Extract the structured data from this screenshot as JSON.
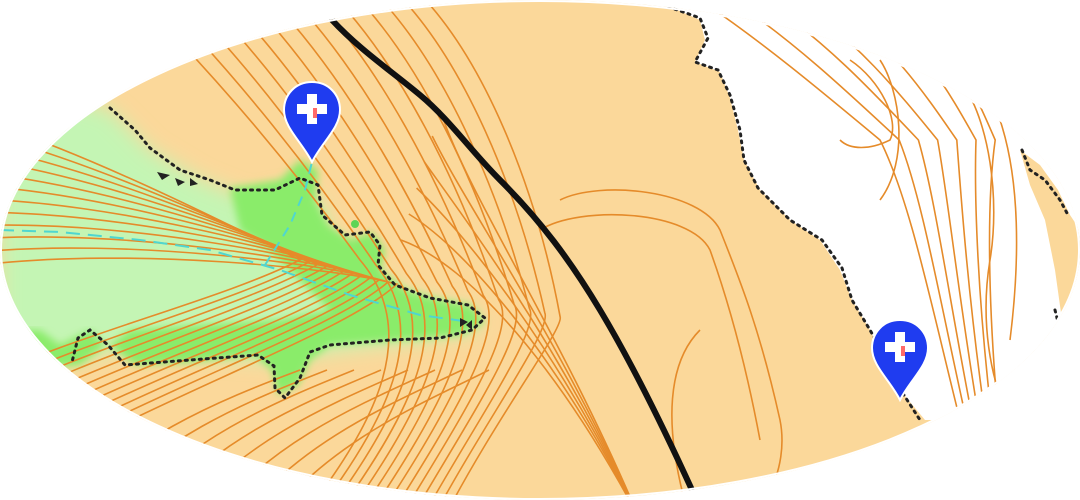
{
  "map": {
    "colors": {
      "page_background": "#ffffff",
      "open_land": "#fbd89a",
      "open_land_light": "#fde4b8",
      "contour": "#e58b2a",
      "vegetation_dark": "#8aec6a",
      "vegetation_light": "#c4f5b4",
      "boundary_line": "#111111",
      "dotted_edge": "#222222",
      "watercourse": "#4fd6d0",
      "marker_fill": "#1f3cf0",
      "marker_stroke": "#ffffff",
      "marker_cross": "#ffffff",
      "marker_cross_accent": "#ff6a6a"
    },
    "icons": {
      "marker": "map-pin-plus-icon",
      "vegetation_note": "arrow-triangle-icon"
    },
    "markers": [
      {
        "id": "control-a",
        "icon": "map-pin-plus-icon"
      },
      {
        "id": "control-b",
        "icon": "map-pin-plus-icon"
      }
    ]
  }
}
